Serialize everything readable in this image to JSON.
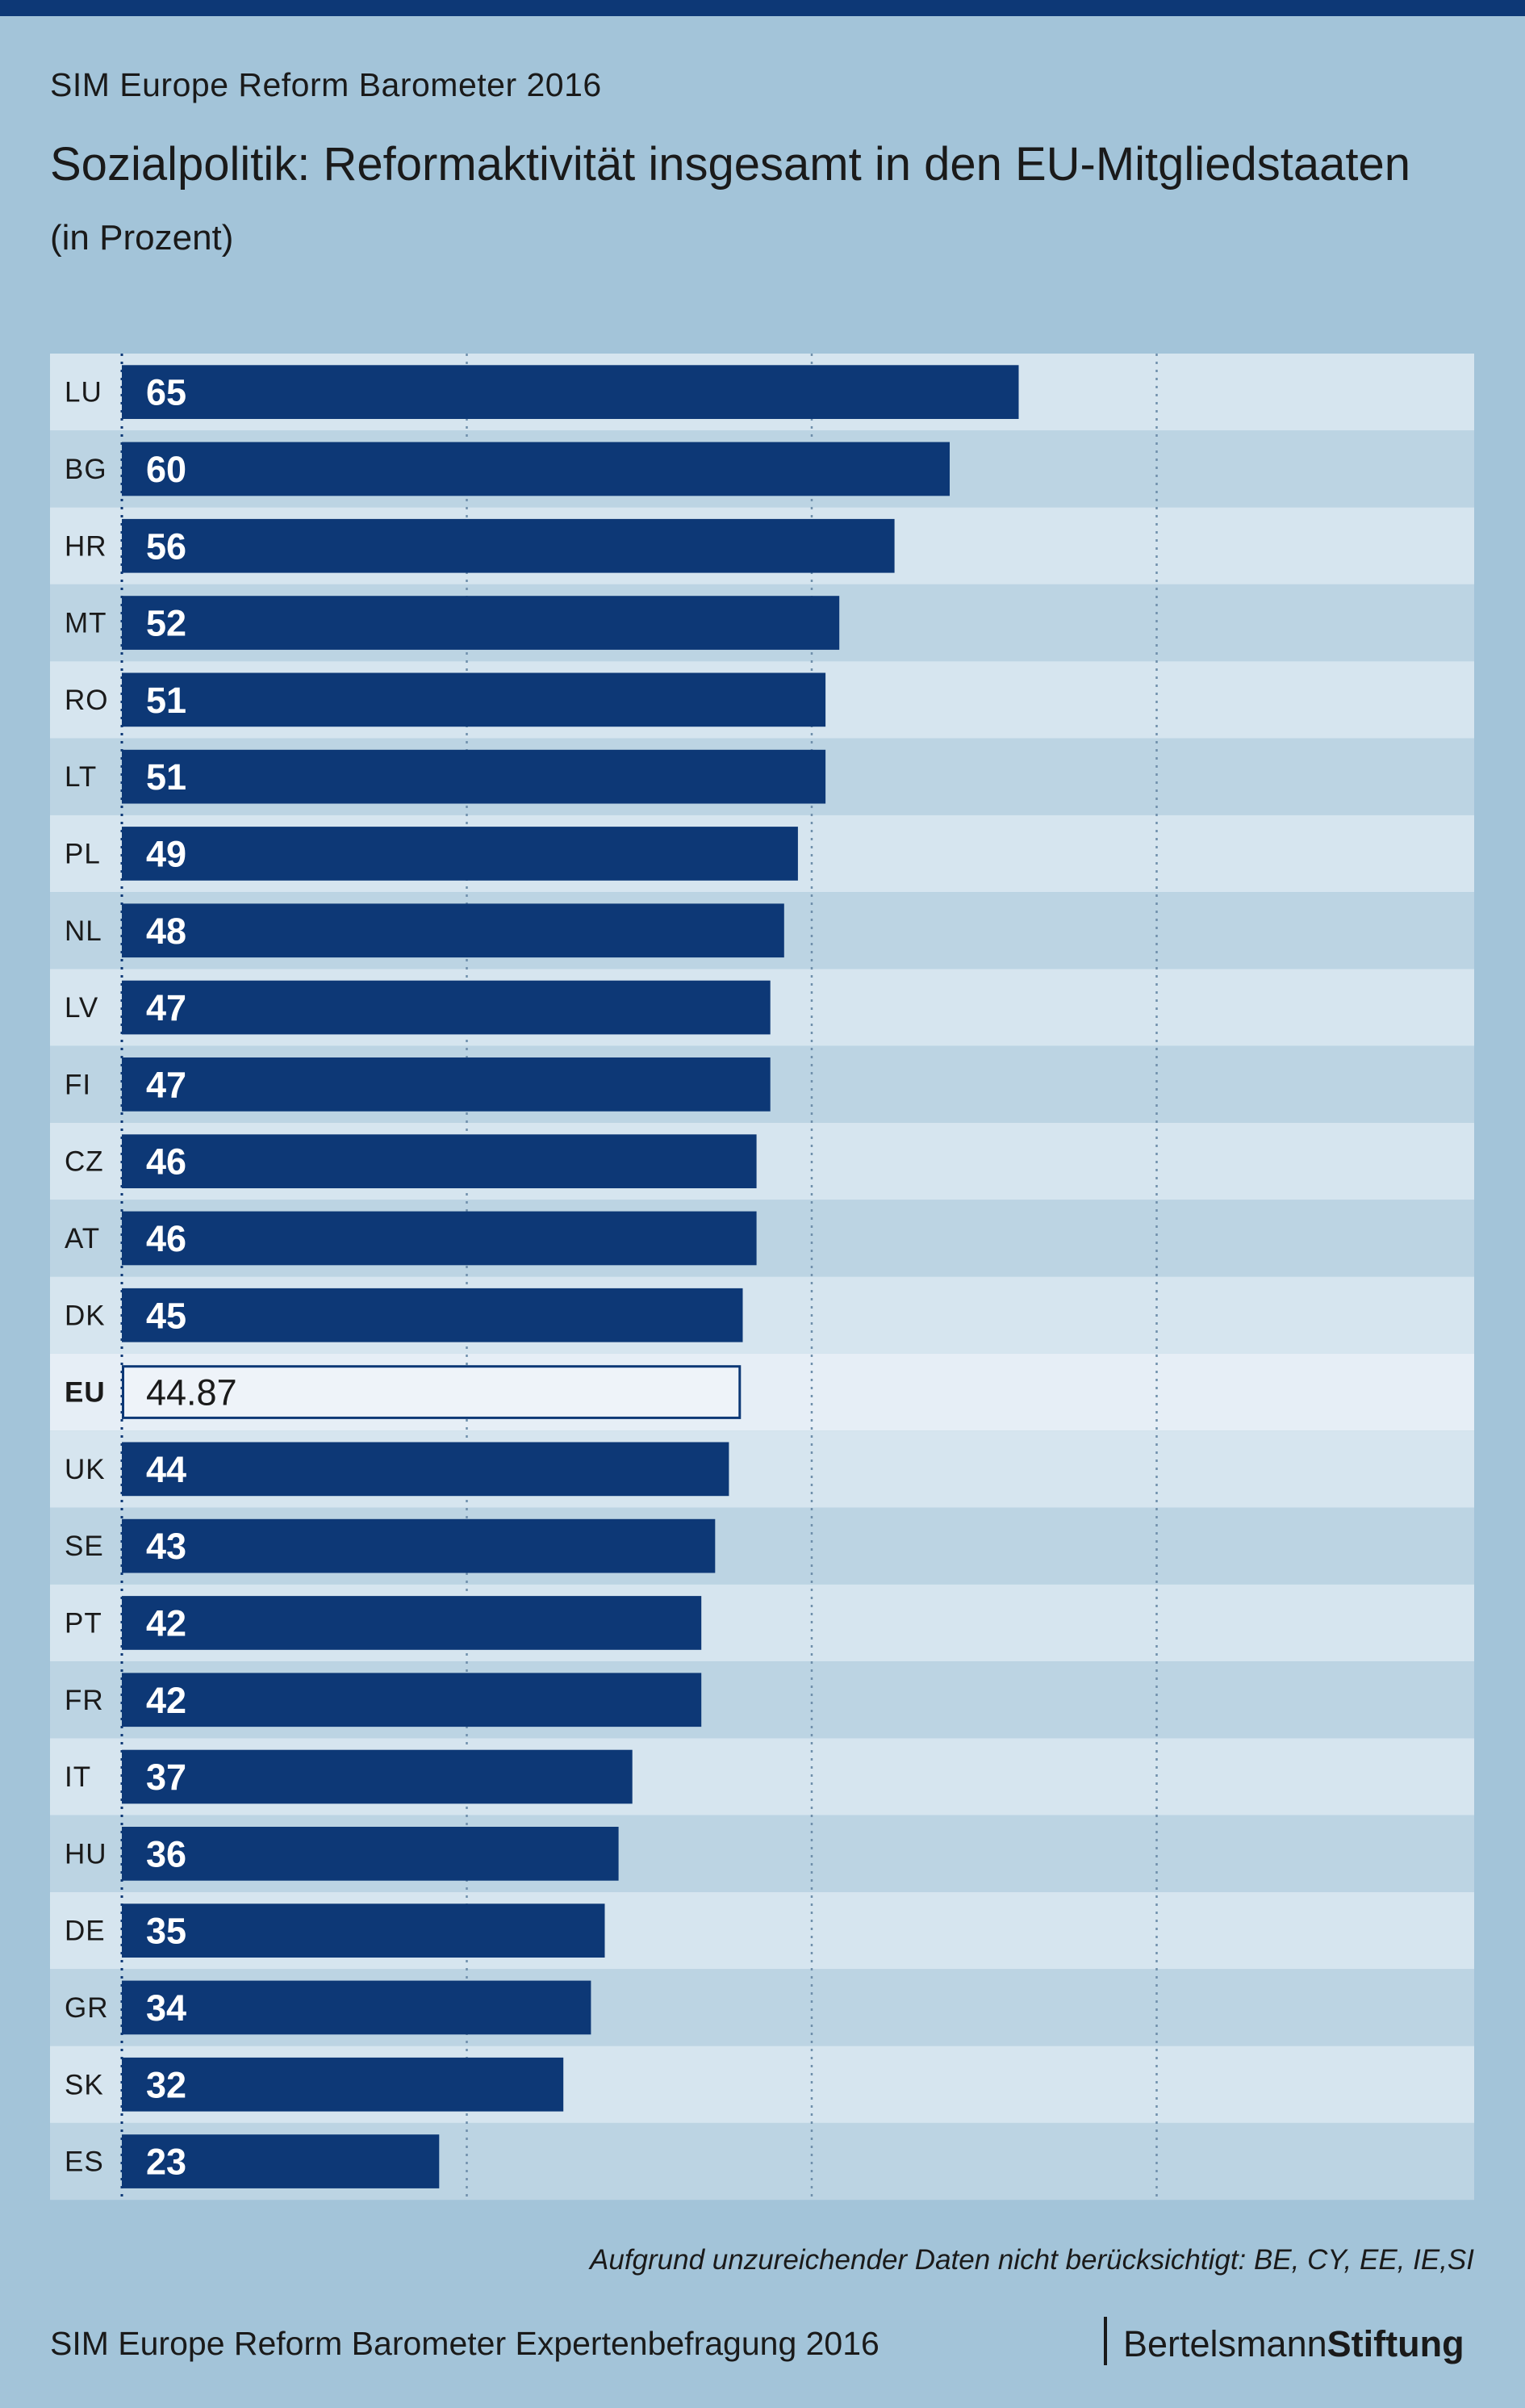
{
  "header": {
    "supertitle": "SIM Europe Reform Barometer 2016",
    "title": "Sozialpolitik: Reformaktivität insgesamt in den EU-Mitgliedstaaten",
    "subtitle": "(in Prozent)"
  },
  "footer": {
    "footnote": "Aufgrund unzureichender Daten nicht berücksichtigt:  BE, CY, EE, IE,SI",
    "source": "SIM Europe Reform Barometer Expertenbefragung 2016",
    "brand_regular": "Bertelsmann",
    "brand_bold": "Stiftung"
  },
  "colors": {
    "background": "#a3c4d9",
    "bar": "#0d3876",
    "row_light": "#d6e5ef",
    "row_dark": "#bcd4e3",
    "eu_row": "#e6eef6",
    "eu_bar_fill": "#eef3f9",
    "eu_bar_border": "#0d3876"
  },
  "chart_data": {
    "type": "bar",
    "orientation": "horizontal",
    "xlim": [
      0,
      100
    ],
    "gridlines": [
      0,
      25,
      50,
      75
    ],
    "grid": true,
    "categories": [
      "LU",
      "BG",
      "HR",
      "MT",
      "RO",
      "LT",
      "PL",
      "NL",
      "LV",
      "FI",
      "CZ",
      "AT",
      "DK",
      "EU",
      "UK",
      "SE",
      "PT",
      "FR",
      "IT",
      "HU",
      "DE",
      "GR",
      "SK",
      "ES"
    ],
    "values": [
      65,
      60,
      56,
      52,
      51,
      51,
      49,
      48,
      47,
      47,
      46,
      46,
      45,
      44.87,
      44,
      43,
      42,
      42,
      37,
      36,
      35,
      34,
      32,
      23
    ],
    "value_labels": [
      "65",
      "60",
      "56",
      "52",
      "51",
      "51",
      "49",
      "48",
      "47",
      "47",
      "46",
      "46",
      "45",
      "44.87",
      "44",
      "43",
      "42",
      "42",
      "37",
      "36",
      "35",
      "34",
      "32",
      "23"
    ],
    "highlight_category": "EU"
  }
}
